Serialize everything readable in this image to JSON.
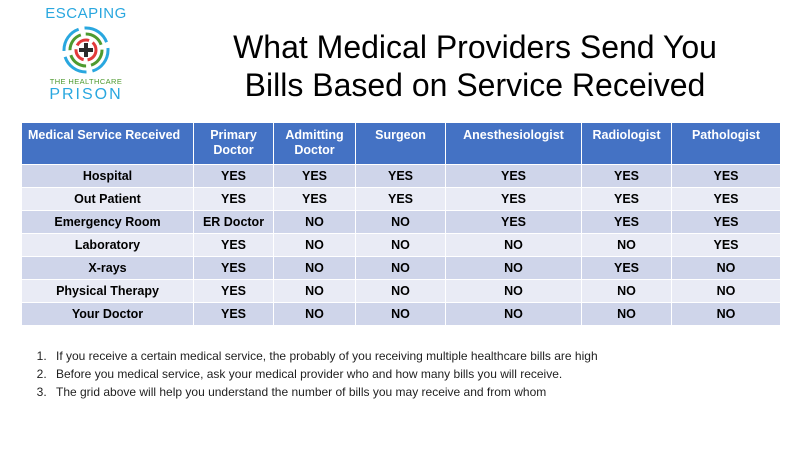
{
  "logo": {
    "top_text": "ESCAPING",
    "middle_text": "THE HEALTHCARE",
    "bottom_text": "PRISON"
  },
  "title": {
    "line1": "What Medical Providers Send You",
    "line2": "Bills Based on Service Received"
  },
  "table": {
    "headers": [
      "Medical Service Received",
      "Primary Doctor",
      "Admitting Doctor",
      "Surgeon",
      "Anesthesiologist",
      "Radiologist",
      "Pathologist"
    ],
    "rows": [
      [
        "Hospital",
        "YES",
        "YES",
        "YES",
        "YES",
        "YES",
        "YES"
      ],
      [
        "Out Patient",
        "YES",
        "YES",
        "YES",
        "YES",
        "YES",
        "YES"
      ],
      [
        "Emergency Room",
        "ER Doctor",
        "NO",
        "NO",
        "YES",
        "YES",
        "YES"
      ],
      [
        "Laboratory",
        "YES",
        "NO",
        "NO",
        "NO",
        "NO",
        "YES"
      ],
      [
        "X-rays",
        "YES",
        "NO",
        "NO",
        "NO",
        "YES",
        "NO"
      ],
      [
        "Physical Therapy",
        "YES",
        "NO",
        "NO",
        "NO",
        "NO",
        "NO"
      ],
      [
        "Your Doctor",
        "YES",
        "NO",
        "NO",
        "NO",
        "NO",
        "NO"
      ]
    ]
  },
  "notes": [
    "If you receive a certain medical service,  the probably of you receiving multiple healthcare bills are high",
    "Before you medical service, ask your medical provider who and how many bills you will receive.",
    "The grid above will help you understand the number of bills you may receive and from whom"
  ],
  "colors": {
    "header_bg": "#4472c4",
    "row_odd": "#cfd5ea",
    "row_even": "#e9ebf5",
    "logo_blue": "#29a7df",
    "logo_green": "#4e9a2f",
    "logo_red": "#e23a3a"
  }
}
